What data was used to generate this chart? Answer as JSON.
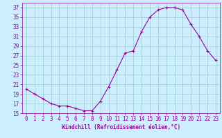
{
  "x": [
    0,
    1,
    2,
    3,
    4,
    5,
    6,
    7,
    8,
    9,
    10,
    11,
    12,
    13,
    14,
    15,
    16,
    17,
    18,
    19,
    20,
    21,
    22,
    23
  ],
  "y": [
    20,
    19,
    18,
    17,
    16.5,
    16.5,
    16,
    15.5,
    15.5,
    17.5,
    20.5,
    24,
    27.5,
    28,
    32,
    35,
    36.5,
    37,
    37,
    36.5,
    33.5,
    31,
    28,
    26
  ],
  "line_color": "#990099",
  "marker": "+",
  "marker_size": 3,
  "marker_lw": 0.8,
  "line_width": 0.8,
  "bg_color": "#cceeff",
  "grid_color": "#99cccc",
  "xlabel": "Windchill (Refroidissement éolien,°C)",
  "tick_color": "#990099",
  "ylim": [
    15,
    38
  ],
  "xlim": [
    -0.5,
    23.5
  ],
  "yticks": [
    15,
    17,
    19,
    21,
    23,
    25,
    27,
    29,
    31,
    33,
    35,
    37
  ],
  "xticks": [
    0,
    1,
    2,
    3,
    4,
    5,
    6,
    7,
    8,
    9,
    10,
    11,
    12,
    13,
    14,
    15,
    16,
    17,
    18,
    19,
    20,
    21,
    22,
    23
  ],
  "xlabel_fontsize": 5.5,
  "tick_fontsize": 5.5
}
